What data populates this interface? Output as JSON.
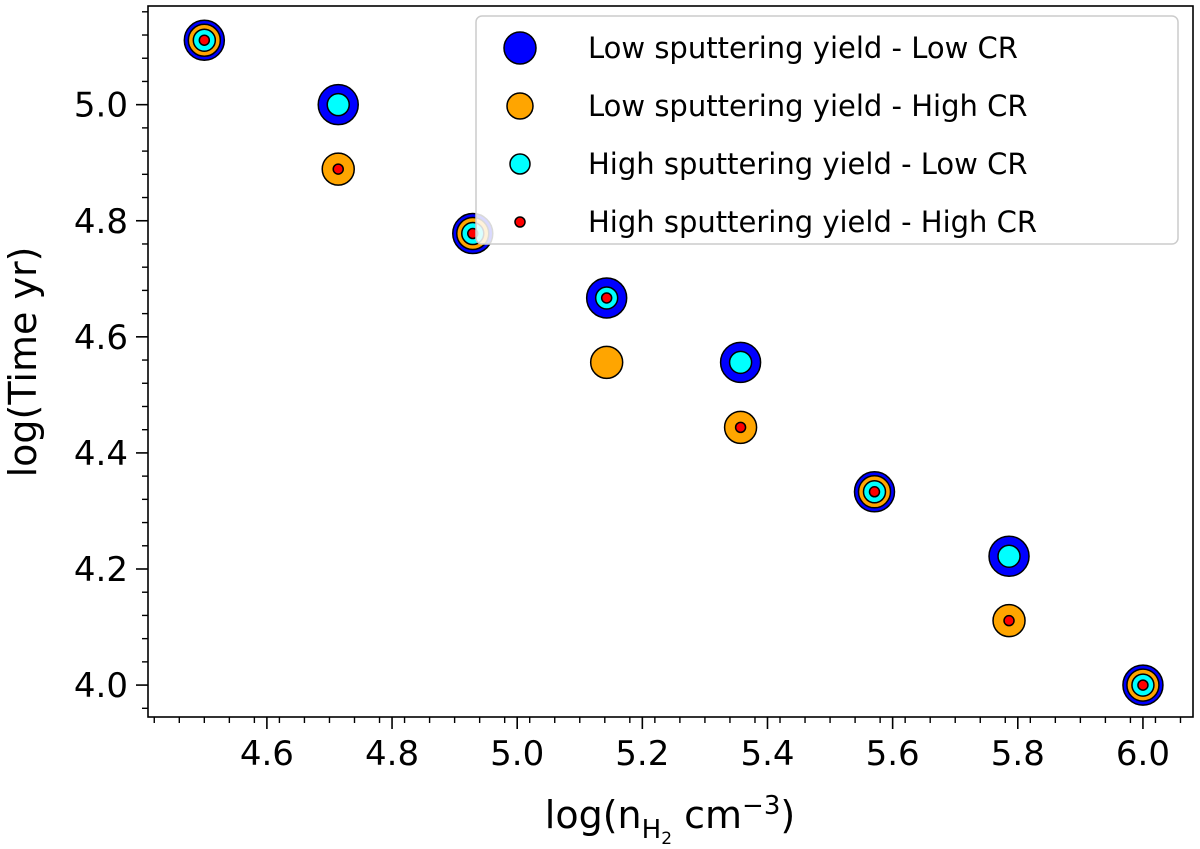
{
  "chart_data": {
    "type": "scatter",
    "xlabel": {
      "prefix": "log(n",
      "sub": "H",
      "subsub": "2",
      "unit": " cm",
      "sup": "−3",
      "suffix": ")"
    },
    "ylabel": "log(Time yr)",
    "xlim": [
      4.41,
      6.08
    ],
    "ylim": [
      3.945,
      5.17
    ],
    "xticks": [
      4.6,
      4.8,
      5.0,
      5.2,
      5.4,
      5.6,
      5.8,
      6.0
    ],
    "xtick_labels": [
      "4.6",
      "4.8",
      "5.0",
      "5.2",
      "5.4",
      "5.6",
      "5.8",
      "6.0"
    ],
    "yticks": [
      4.0,
      4.2,
      4.4,
      4.6,
      4.8,
      5.0
    ],
    "ytick_labels": [
      "4.0",
      "4.2",
      "4.4",
      "4.6",
      "4.8",
      "5.0"
    ],
    "grid": false,
    "legend_position": "top-right",
    "x": [
      4.5,
      4.714,
      4.929,
      5.143,
      5.357,
      5.571,
      5.786,
      6.0
    ],
    "series": [
      {
        "name": "Low sputtering yield - Low CR",
        "color": "#0000ff",
        "marker_size": "largest",
        "values": [
          5.111,
          5.0,
          4.778,
          4.667,
          4.556,
          4.333,
          4.222,
          4.0
        ]
      },
      {
        "name": "Low sputtering yield - High CR",
        "color": "#ffa500",
        "marker_size": "large",
        "values": [
          5.111,
          4.889,
          4.778,
          4.556,
          4.444,
          4.333,
          4.111,
          4.0
        ]
      },
      {
        "name": "High sputtering yield - Low CR",
        "color": "#00ffff",
        "marker_size": "medium",
        "values": [
          5.111,
          5.0,
          4.778,
          4.667,
          4.556,
          4.333,
          4.222,
          4.0
        ]
      },
      {
        "name": "High sputtering yield - High CR",
        "color": "#ff0000",
        "marker_size": "small",
        "values": [
          5.111,
          4.889,
          4.778,
          4.667,
          4.444,
          4.333,
          4.111,
          4.0
        ]
      }
    ]
  }
}
